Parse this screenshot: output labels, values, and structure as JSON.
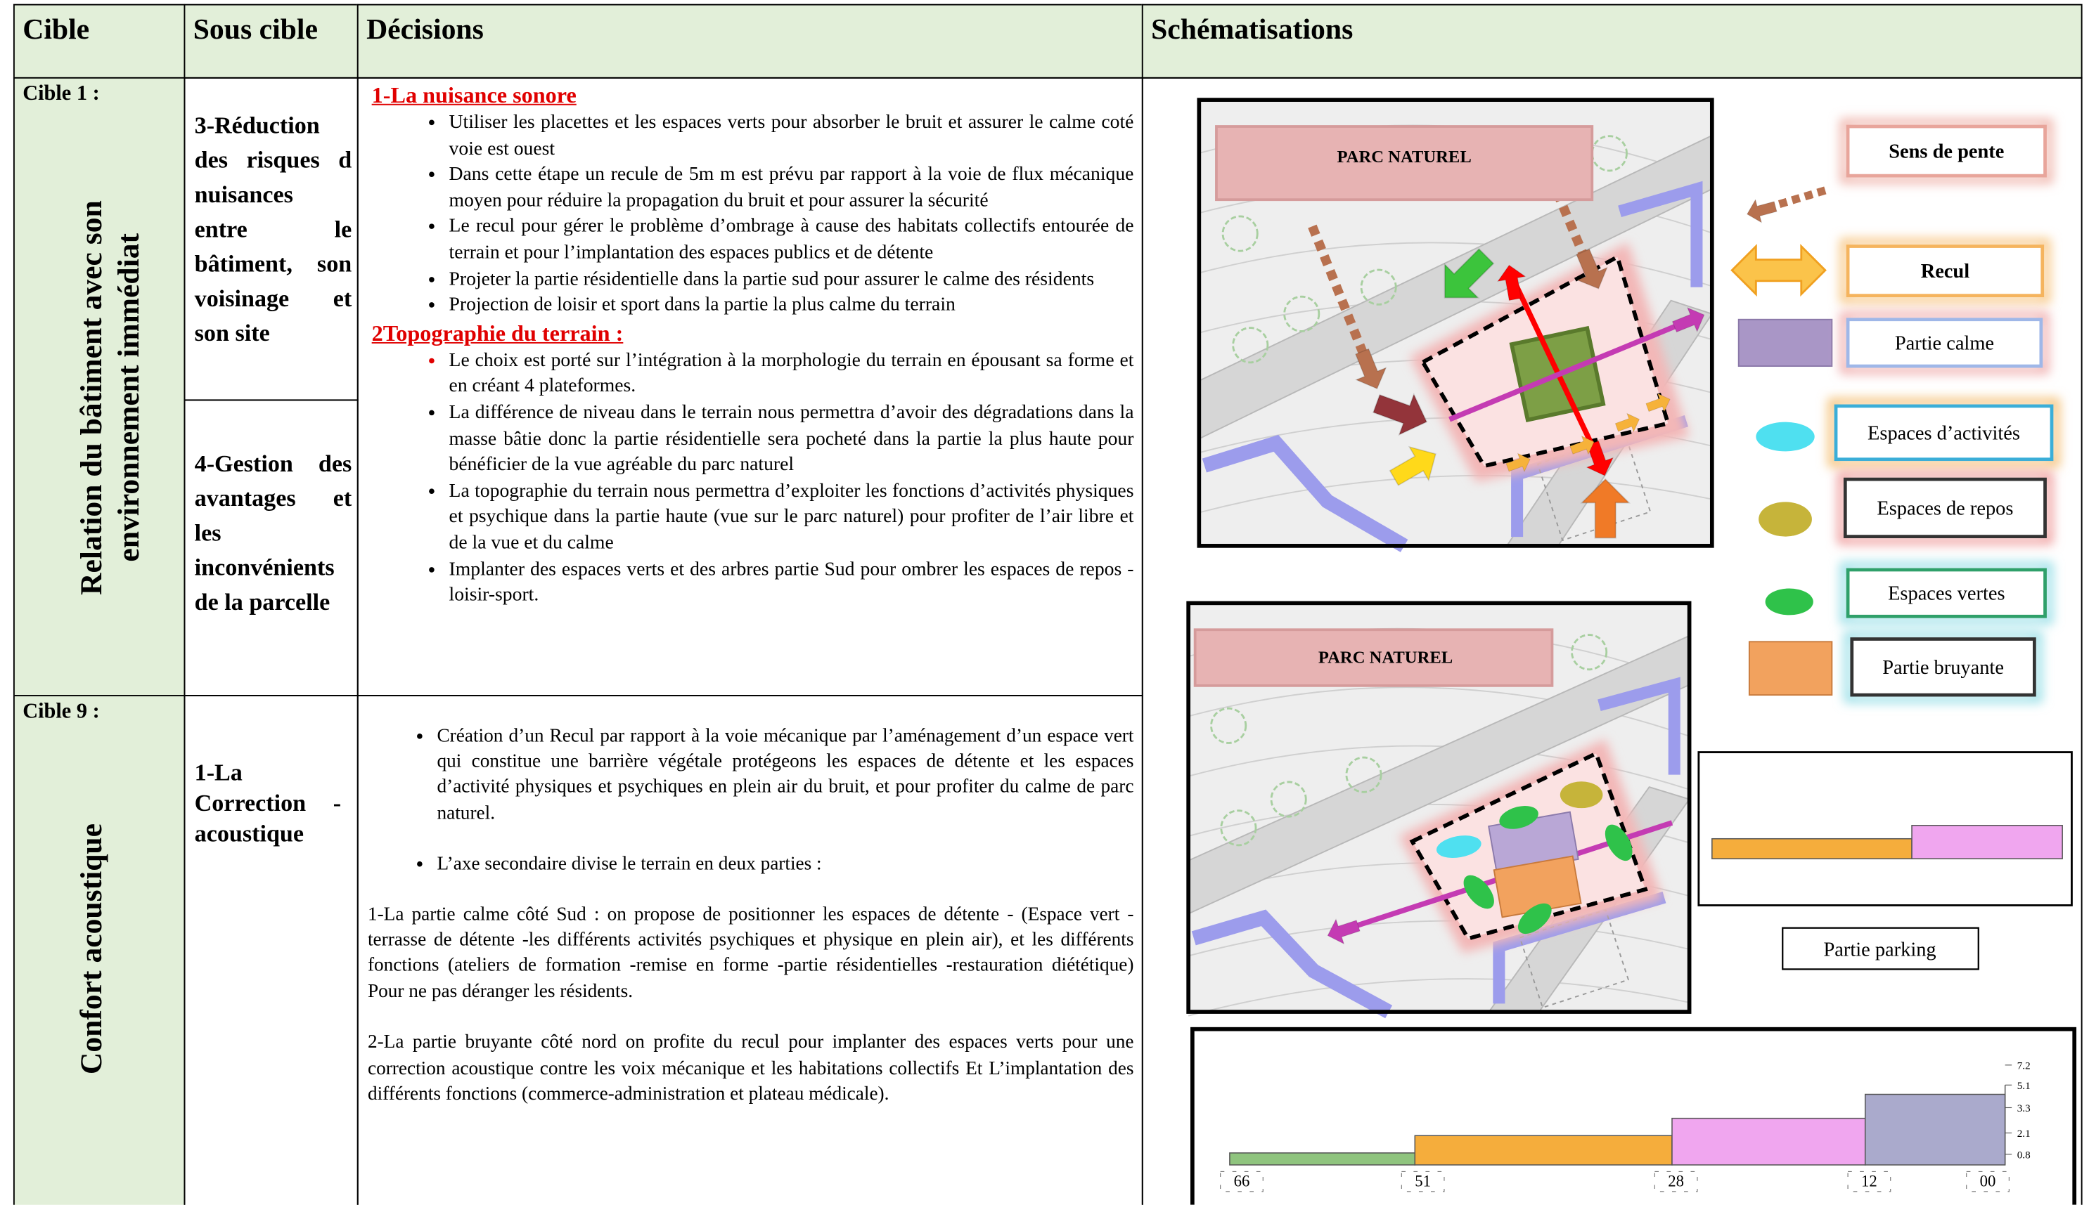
{
  "header": {
    "columns": [
      "Cible",
      "Sous cible",
      "Décisions",
      "Schématisations"
    ]
  },
  "rows": [
    {
      "cible": "Cible 1 :",
      "theme": "Relation du bâtiment avec son environnement immédiat",
      "sous_cibles": [
        "3-Réduction des risques d nuisances entre le bâtiment, son voisinage et son site",
        "4-Gestion des avantages et les inconvénients de la parcelle"
      ],
      "decisions": [
        {
          "heading": "1-La nuisance sonore",
          "bullets": [
            "Utiliser les placettes et les espaces verts pour absorber le bruit et assurer le calme coté voie est ouest",
            "Dans cette étape un recule de 5m m est prévu par rapport à la voie de flux mécanique moyen pour réduire la propagation du bruit et pour assurer la sécurité",
            "Le recul pour gérer le problème d’ombrage à cause des habitats collectifs entourée de terrain et pour l’implantation des espaces publics et de détente",
            "Projeter la partie résidentielle dans la partie sud pour assurer le calme des résidents",
            "Projection de loisir et sport dans la partie la plus calme du terrain"
          ]
        },
        {
          "heading": "2Topographie du terrain :",
          "bullets": [
            "Le choix est porté sur l’intégration à la morphologie du terrain en épousant sa forme et en créant 4 plateformes.",
            "La différence de niveau dans le terrain nous permettra d’avoir des dégradations dans la masse bâtie donc la partie résidentielle sera pocheté dans la partie la plus haute pour bénéficier de la vue agréable du parc naturel",
            "La topographie du terrain nous permettra d’exploiter les fonctions d’activités physiques et psychique dans la partie haute (vue sur le parc naturel) pour profiter de l’air libre et de la vue et du calme",
            "Implanter des espaces verts et des arbres partie Sud   pour ombrer les espaces de repos -loisir-sport."
          ]
        }
      ]
    },
    {
      "cible": "Cible 9 :",
      "theme": "Confort acoustique",
      "sous_cibles": [
        "1-La Correction -acoustique"
      ],
      "decisions": [
        {
          "bullets": [
            "Création d’un Recul par rapport à la voie mécanique par l’aménagement d’un espace vert qui constitue une barrière végétale protégeons les espaces de détente et les espaces d’activité physiques et psychiques en plein air du bruit, et pour profiter du calme de parc naturel.",
            "L’axe secondaire divise le terrain en deux parties :"
          ],
          "paragraphs": [
            "1-La partie calme côté Sud : on propose de positionner les espaces de détente - (Espace vert -terrasse de détente -les différents activités psychiques et physique en plein air), et les différents fonctions (ateliers de formation -remise en forme -partie résidentielles -restauration diététique) Pour ne pas déranger les résidents.",
            "2-La partie bruyante côté nord on profite du recul pour implanter des espaces verts pour une correction acoustique contre les voix mécanique et les habitations collectifs Et L’implantation des différents fonctions (commerce-administration et plateau médicale)."
          ]
        }
      ]
    }
  ],
  "schemas": {
    "map_labels": [
      "PARC NATUREL",
      "PARC NATUREL"
    ],
    "legend": [
      "Sens de pente",
      "Recul",
      "Partie calme",
      "Espaces d’activités",
      "Espaces de repos",
      "Espaces vertes",
      "Partie bruyante"
    ],
    "parking_label": "Partie parking",
    "profile": {
      "distances": [
        "66",
        "51",
        "28",
        "12",
        "00"
      ],
      "levels": [
        "7.2",
        "5.1",
        "3.3",
        "2.1",
        "0.8"
      ]
    }
  }
}
